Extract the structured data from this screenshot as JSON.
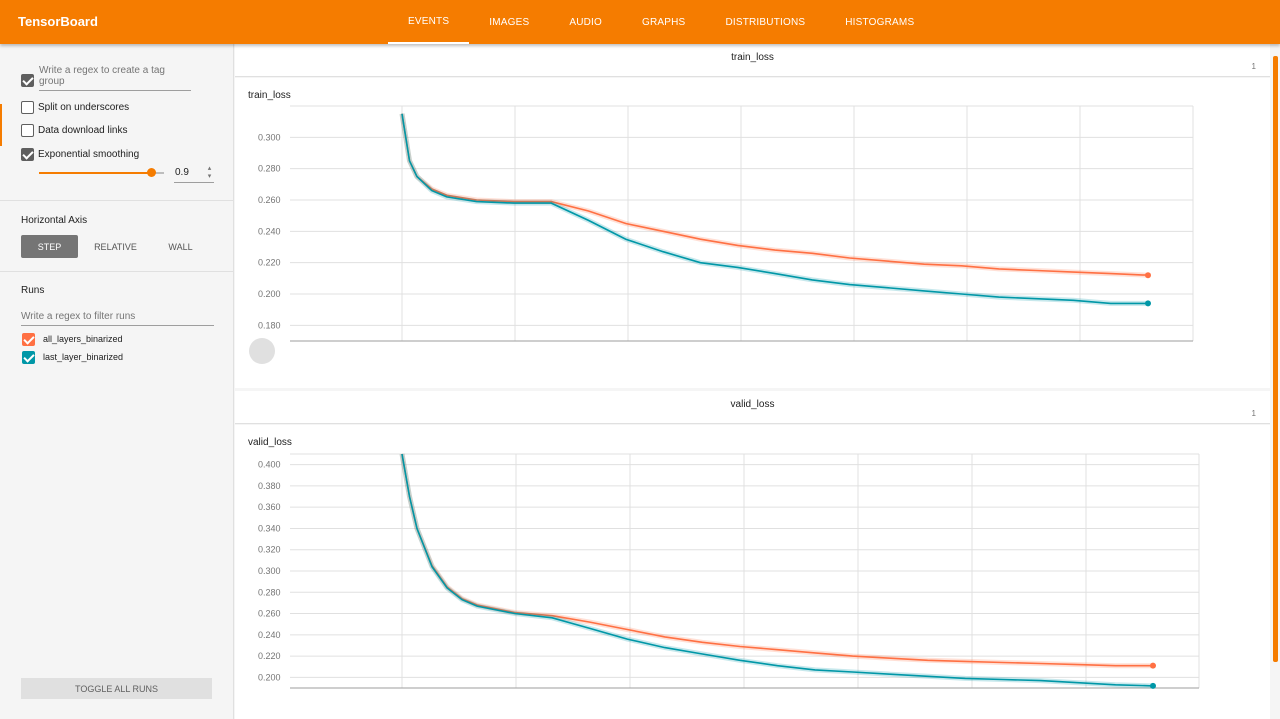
{
  "app": {
    "title": "TensorBoard"
  },
  "tabs": [
    {
      "label": "EVENTS",
      "active": true
    },
    {
      "label": "IMAGES"
    },
    {
      "label": "AUDIO"
    },
    {
      "label": "GRAPHS"
    },
    {
      "label": "DISTRIBUTIONS"
    },
    {
      "label": "HISTOGRAMS"
    }
  ],
  "sidebar": {
    "tag_group_placeholder": "Write a regex to create a tag group",
    "split_underscores": {
      "label": "Split on underscores",
      "checked": false
    },
    "data_download": {
      "label": "Data download links",
      "checked": false
    },
    "exp_smoothing": {
      "label": "Exponential smoothing",
      "checked": true
    },
    "smoothing_value": "0.9",
    "horizontal_axis": {
      "title": "Horizontal Axis",
      "options": [
        "STEP",
        "RELATIVE",
        "WALL"
      ],
      "selected": "STEP"
    },
    "runs": {
      "title": "Runs",
      "filter_placeholder": "Write a regex to filter runs",
      "items": [
        {
          "name": "all_layers_binarized",
          "color": "#ff7043",
          "checked": true
        },
        {
          "name": "last_layer_binarized",
          "color": "#0097a7",
          "checked": true
        }
      ]
    },
    "toggle_all": "TOGGLE ALL RUNS"
  },
  "cards": [
    {
      "header": "train_loss",
      "count": "1"
    },
    {
      "header": "valid_loss",
      "count": "1"
    }
  ],
  "chart_data": [
    {
      "type": "line",
      "title": "train_loss",
      "ylim": [
        0.17,
        0.32
      ],
      "yticks": [
        "0.300",
        "0.280",
        "0.260",
        "0.240",
        "0.220",
        "0.200",
        "0.180"
      ],
      "ytick_values": [
        0.3,
        0.28,
        0.26,
        0.24,
        0.22,
        0.2,
        0.18
      ],
      "x": [
        0,
        0.01,
        0.02,
        0.04,
        0.06,
        0.1,
        0.15,
        0.2,
        0.25,
        0.3,
        0.35,
        0.4,
        0.45,
        0.5,
        0.55,
        0.6,
        0.65,
        0.7,
        0.75,
        0.8,
        0.85,
        0.9,
        0.95,
        1.0
      ],
      "series": [
        {
          "name": "all_layers_binarized",
          "color": "#ff7043",
          "values": [
            0.315,
            0.285,
            0.275,
            0.267,
            0.263,
            0.26,
            0.259,
            0.259,
            0.253,
            0.245,
            0.24,
            0.235,
            0.231,
            0.228,
            0.226,
            0.223,
            0.221,
            0.219,
            0.218,
            0.216,
            0.215,
            0.214,
            0.213,
            0.212
          ]
        },
        {
          "name": "last_layer_binarized",
          "color": "#0097a7",
          "values": [
            0.315,
            0.285,
            0.275,
            0.266,
            0.262,
            0.259,
            0.258,
            0.258,
            0.247,
            0.235,
            0.227,
            0.22,
            0.217,
            0.213,
            0.209,
            0.206,
            0.204,
            0.202,
            0.2,
            0.198,
            0.197,
            0.196,
            0.194,
            0.194
          ]
        }
      ]
    },
    {
      "type": "line",
      "title": "valid_loss",
      "ylim": [
        0.19,
        0.41
      ],
      "yticks": [
        "0.400",
        "0.380",
        "0.360",
        "0.340",
        "0.320",
        "0.300",
        "0.280",
        "0.260",
        "0.240",
        "0.220",
        "0.200"
      ],
      "ytick_values": [
        0.4,
        0.38,
        0.36,
        0.34,
        0.32,
        0.3,
        0.28,
        0.26,
        0.24,
        0.22,
        0.2
      ],
      "x": [
        0,
        0.01,
        0.02,
        0.04,
        0.06,
        0.08,
        0.1,
        0.15,
        0.2,
        0.25,
        0.3,
        0.35,
        0.4,
        0.45,
        0.5,
        0.55,
        0.6,
        0.65,
        0.7,
        0.75,
        0.8,
        0.85,
        0.9,
        0.95,
        1.0
      ],
      "series": [
        {
          "name": "all_layers_binarized",
          "color": "#ff7043",
          "values": [
            0.41,
            0.37,
            0.34,
            0.305,
            0.285,
            0.274,
            0.268,
            0.261,
            0.258,
            0.252,
            0.245,
            0.238,
            0.233,
            0.229,
            0.226,
            0.223,
            0.22,
            0.218,
            0.216,
            0.215,
            0.214,
            0.213,
            0.212,
            0.211,
            0.211
          ]
        },
        {
          "name": "last_layer_binarized",
          "color": "#0097a7",
          "values": [
            0.41,
            0.37,
            0.34,
            0.304,
            0.284,
            0.273,
            0.267,
            0.26,
            0.256,
            0.246,
            0.236,
            0.228,
            0.222,
            0.216,
            0.211,
            0.207,
            0.205,
            0.203,
            0.201,
            0.199,
            0.198,
            0.197,
            0.195,
            0.193,
            0.192
          ]
        }
      ]
    }
  ]
}
